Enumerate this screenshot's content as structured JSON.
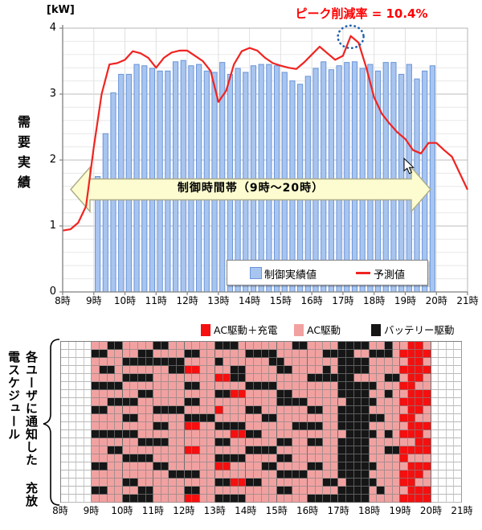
{
  "colors": {
    "bar_fill": "#A8C5F0",
    "bar_border": "#6B95D8",
    "line_red": "#F02421",
    "grid_minor": "#e8e8e8",
    "grid_major": "#bdbdbd",
    "axis": "#808080",
    "grid_vert": "#e0e0e0",
    "banner_fill": "#FCFCD0",
    "banner_border": "#ABAB8A",
    "circle_blue": "#1E5FAE",
    "annotation_red": "#FF0000",
    "heat_pink": "#F2A1A1",
    "heat_red": "#F50F0F",
    "heat_black": "#161616"
  },
  "chart_data": [
    {
      "type": "bar",
      "unit": "[kW]",
      "ylabel": "需要実績",
      "ylim": [
        0,
        4
      ],
      "y_major_step": 1,
      "y_minor_step": 0.2,
      "y_ticks": [
        "4",
        "3",
        "2",
        "1",
        "0"
      ],
      "x_hours": [
        "8時",
        "9時",
        "10時",
        "11時",
        "12時",
        "13時",
        "14時",
        "15時",
        "16時",
        "17時",
        "18時",
        "19時",
        "20時",
        "21時"
      ],
      "bar_series": {
        "name": "制御実績値",
        "start": "9:00",
        "interval_minutes": 15,
        "values": [
          1.75,
          2.4,
          3.02,
          3.3,
          3.3,
          3.45,
          3.43,
          3.39,
          3.35,
          3.35,
          3.49,
          3.51,
          3.43,
          3.45,
          3.35,
          3.33,
          3.48,
          3.3,
          3.39,
          3.33,
          3.43,
          3.45,
          3.45,
          3.43,
          3.33,
          3.2,
          3.15,
          3.27,
          3.39,
          3.49,
          3.37,
          3.43,
          3.48,
          3.49,
          3.39,
          3.45,
          3.35,
          3.48,
          3.48,
          3.3,
          3.45,
          3.23,
          3.35,
          3.43
        ]
      },
      "line_series": {
        "name": "予測値",
        "start": "8:00",
        "interval_minutes": 15,
        "values": [
          0.93,
          0.95,
          1.05,
          1.3,
          2.2,
          3.0,
          3.45,
          3.47,
          3.52,
          3.65,
          3.62,
          3.55,
          3.4,
          3.55,
          3.63,
          3.66,
          3.66,
          3.58,
          3.5,
          3.35,
          2.88,
          3.05,
          3.45,
          3.65,
          3.7,
          3.66,
          3.55,
          3.47,
          3.43,
          3.4,
          3.38,
          3.48,
          3.6,
          3.72,
          3.62,
          3.52,
          3.58,
          3.88,
          3.78,
          3.4,
          2.95,
          2.7,
          2.55,
          2.42,
          2.32,
          2.15,
          2.1,
          2.26,
          2.26,
          2.15,
          2.05,
          1.8,
          1.55
        ]
      },
      "annotation": {
        "text": "ピーク削減率 = 10.4%",
        "circled_point": {
          "time": "17:15",
          "value": 3.88
        }
      },
      "banner": {
        "text": "制御時間帯（9時～20時）",
        "from": "9時",
        "to": "20時"
      },
      "legend_position": "bottom-right-inside",
      "grid": "on"
    },
    {
      "type": "heatmap",
      "ylabel": "各ユーザに通知した充放電スケジュール",
      "ylabel_lines": [
        "各ユーザに通知した",
        "充放電スケジュール"
      ],
      "x_hours": [
        "8時",
        "9時",
        "10時",
        "11時",
        "12時",
        "13時",
        "14時",
        "15時",
        "16時",
        "17時",
        "18時",
        "19時",
        "20時",
        "21時"
      ],
      "rows": 20,
      "cols": 52,
      "colored_range": "9時〜20時",
      "pre_blank_cols": 4,
      "post_blank_cols": 4,
      "legend": [
        {
          "code": "R",
          "label": "AC駆動＋充電",
          "color": "#F50F0F"
        },
        {
          "code": "P",
          "label": "AC駆動",
          "color": "#F2A1A1"
        },
        {
          "code": "K",
          "label": "バッテリー駆動",
          "color": "#161616"
        }
      ],
      "cells": [
        "PPKKPPPPKKPPPPPPKKKPPPPPPPKKPPPPKKKKPPKPPRRP",
        "KKPPPPKKPPPPKKPPPPPPKKKKPPPPPPKKKKPPKKKPRRRR",
        "PPPPKKKKKKKKPPPPKPPPPPPKKPPPPPPPKKKKPPPPPRRP",
        "PKKPPPPPPPKKRRPPPPKKPPPPKKPPPPKPKKKKPPPPRRRR",
        "PPPPKKKKPPPPPPPPRRKKPPPPPPPPKKKKKKPPPPKKPRRP",
        "KKKKPPPPPPPPKKPPPPPPKKKKPPPPPPPPKKKKKPPPRRPP",
        "PPPPPPKKPPPPPPPPKKRRPPPPKKPPPPPPKKKKPPKPPRRR",
        "PPKKKKPPPPPPKKPPPPPPPPPPKKKKPPPPPKKKKPPPRRRR",
        "KKPPPPPPKKKKPPPPRPPPKKPPPPPPKKPPKKKKPPPPPRRP",
        "PPPPKKPPPPPPKKKKPPPPPPKKPPPPPPPPKKKKKKPPRRPP",
        "PPPPPPPPKKPPRRPPKKKKPPPPPPKKKKPPKKKKPPPPPRRR",
        "KKKKKKPPPPPPPPPPPPRRKKPPPPPPPPPPPKKKKPKPRRRP",
        "PPPPPPKKKKPPPPPPKKPPPPPPKKPPKKPPKKKKPPPPPPRR",
        "PPKKPPPPPPPPRRPPPPPPKKKKPPPPPPPPKKKKPPKKRRRR",
        "PPPPKKKKPPPPPPPPKKKKPPPPKKPPPPPPKKKKPPPPRPPP",
        "KKPPPPPPKKPPPPPPRRPPPPKKPPPPKKPPKKKKKPPPPRRR",
        "PPPPPPPPPPKKKKPPPPPPPPPPKKKKPPPPKKKKPPPPRRRP",
        "PPPPKKPPPPPPPPPPKKRRKKPPPPPPPPKKPKKKKPPPRRPP",
        "KKPPPPKKPPPPKKPPPPPPPPPPKKPPPPPPKKKKPKPPPRRR",
        "PPPPKKKKPPPPRRPPKKKKPPPPPPPPKKKKKKKKPPPPRRRR"
      ]
    }
  ]
}
